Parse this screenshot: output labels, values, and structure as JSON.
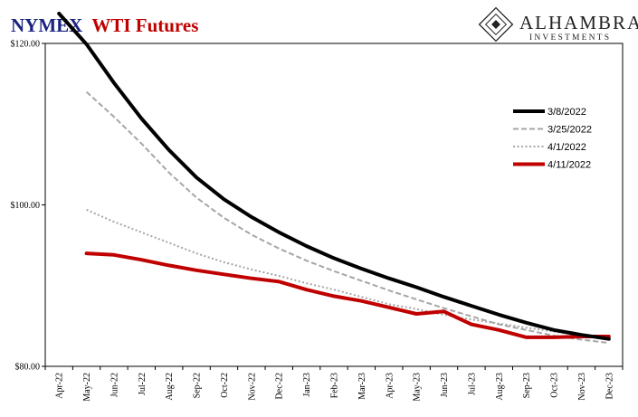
{
  "colors": {
    "title_part1": "#1a237e",
    "title_part2": "#c00000"
  },
  "logo": {
    "name": "Alhambra",
    "tagline": "Investments"
  },
  "chart_data": {
    "type": "line",
    "title_part1": "NYMEX",
    "title_part2": "WTI Futures",
    "categories": [
      "Apr-22",
      "May-22",
      "Jun-22",
      "Jul-22",
      "Aug-22",
      "Sep-22",
      "Oct-22",
      "Nov-22",
      "Dec-22",
      "Jan-23",
      "Feb-23",
      "Mar-23",
      "Apr-23",
      "May-23",
      "Jun-23",
      "Jul-23",
      "Aug-23",
      "Sep-23",
      "Oct-23",
      "Nov-23",
      "Dec-23"
    ],
    "ylim": [
      80,
      120
    ],
    "yticks": [
      80,
      100,
      120
    ],
    "ytick_labels": [
      "$80.00",
      "$100.00",
      "$120.00"
    ],
    "grid": false,
    "legend_position": "right",
    "series": [
      {
        "name": "3/8/2022",
        "color": "#000000",
        "dash": "solid",
        "width": 4,
        "values": [
          123.7,
          119.9,
          115.1,
          110.7,
          106.8,
          103.4,
          100.7,
          98.5,
          96.6,
          94.9,
          93.4,
          92.1,
          90.9,
          89.8,
          88.6,
          87.5,
          86.4,
          85.4,
          84.5,
          83.9,
          83.4
        ]
      },
      {
        "name": "3/25/2022",
        "color": "#a6a6a6",
        "dash": "dashed",
        "width": 2,
        "values": [
          null,
          114.0,
          110.9,
          107.6,
          104.0,
          100.9,
          98.4,
          96.3,
          94.6,
          93.1,
          91.8,
          90.6,
          89.4,
          88.3,
          87.2,
          86.2,
          85.2,
          84.5,
          83.8,
          83.3,
          82.9
        ]
      },
      {
        "name": "4/1/2022",
        "color": "#a6a6a6",
        "dash": "dotted",
        "width": 2,
        "values": [
          null,
          99.4,
          97.9,
          96.6,
          95.3,
          94.0,
          92.9,
          92.0,
          91.2,
          90.3,
          89.5,
          88.6,
          87.7,
          87.1,
          86.4,
          85.8,
          85.3,
          84.8,
          84.3,
          83.8,
          83.4
        ]
      },
      {
        "name": "4/11/2022",
        "color": "#c00000",
        "dash": "solid",
        "width": 4,
        "values": [
          null,
          94.0,
          93.8,
          93.2,
          92.5,
          91.9,
          91.4,
          90.9,
          90.5,
          89.5,
          88.7,
          88.1,
          87.3,
          86.5,
          86.8,
          85.2,
          84.5,
          83.6,
          83.6,
          83.7,
          83.7
        ]
      }
    ]
  }
}
